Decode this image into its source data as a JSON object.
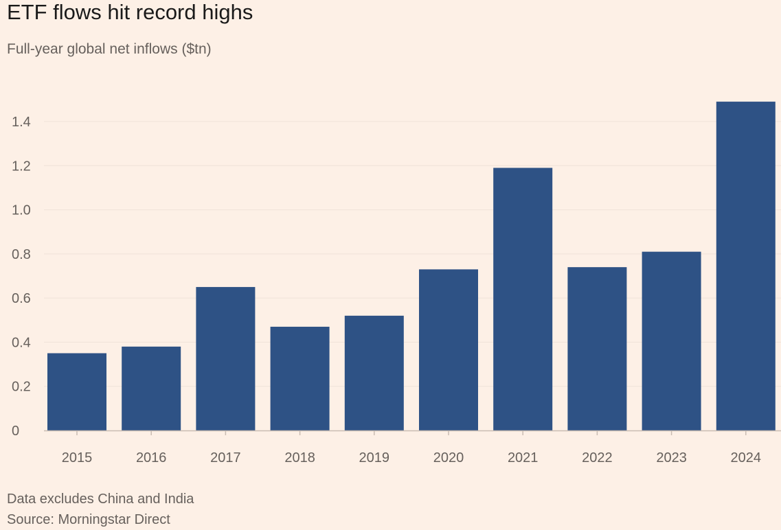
{
  "chart_data": {
    "type": "bar",
    "title": "ETF flows hit record highs",
    "subtitle": "Full-year global net inflows ($tn)",
    "categories": [
      "2015",
      "2016",
      "2017",
      "2018",
      "2019",
      "2020",
      "2021",
      "2022",
      "2023",
      "2024"
    ],
    "series": [
      {
        "name": "Global net inflows ($tn)",
        "values": [
          0.35,
          0.38,
          0.65,
          0.47,
          0.52,
          0.73,
          1.19,
          0.74,
          0.81,
          1.49
        ]
      }
    ],
    "yticks": [
      0,
      0.2,
      0.4,
      0.6,
      0.8,
      1.0,
      1.2,
      1.4
    ],
    "ytick_labels": [
      "0",
      "0.2",
      "0.4",
      "0.6",
      "0.8",
      "1.0",
      "1.2",
      "1.4"
    ],
    "ylim": [
      0,
      1.5
    ],
    "xlabel": "",
    "ylabel": "",
    "grid": true,
    "bar_color": "#2E5285",
    "grid_color": "#EFE2D8",
    "axis_color": "#C9BCB2",
    "note": "Data excludes China and India",
    "source": "Source: Morningstar Direct"
  }
}
